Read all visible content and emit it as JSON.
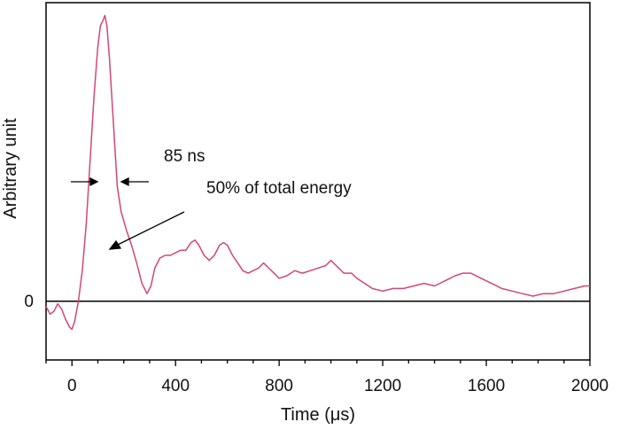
{
  "chart_data": {
    "type": "line",
    "xlabel": "Time (μs)",
    "ylabel": "Arbitrary unit",
    "xlim": [
      -100,
      2000
    ],
    "ylim": [
      -0.23,
      1.17
    ],
    "xticks": [
      0,
      400,
      800,
      1200,
      1600,
      2000
    ],
    "xtick_labels": [
      "0",
      "400",
      "800",
      "1200",
      "1600",
      "2000"
    ],
    "yticks": [
      0
    ],
    "ytick_labels": [
      "0"
    ],
    "baseline": 0,
    "grid": false,
    "series": [
      {
        "color": "#d4457a",
        "x": [
          -100,
          -85,
          -70,
          -55,
          -40,
          -25,
          -10,
          0,
          10,
          25,
          40,
          55,
          70,
          85,
          100,
          110,
          120,
          127,
          135,
          145,
          160,
          175,
          190,
          210,
          230,
          250,
          270,
          290,
          305,
          320,
          340,
          360,
          380,
          400,
          420,
          440,
          460,
          475,
          490,
          510,
          530,
          550,
          570,
          585,
          600,
          620,
          640,
          660,
          680,
          700,
          720,
          740,
          760,
          780,
          800,
          830,
          860,
          890,
          920,
          950,
          980,
          1000,
          1020,
          1050,
          1080,
          1100,
          1130,
          1160,
          1200,
          1240,
          1280,
          1320,
          1360,
          1400,
          1440,
          1480,
          1510,
          1540,
          1580,
          1620,
          1660,
          1700,
          1740,
          1780,
          1820,
          1860,
          1900,
          1940,
          1980,
          2000
        ],
        "y": [
          -0.02,
          -0.05,
          -0.04,
          -0.01,
          -0.03,
          -0.07,
          -0.1,
          -0.11,
          -0.08,
          0.0,
          0.12,
          0.3,
          0.55,
          0.8,
          1.0,
          1.08,
          1.1,
          1.12,
          1.08,
          0.95,
          0.7,
          0.45,
          0.35,
          0.28,
          0.22,
          0.15,
          0.07,
          0.03,
          0.06,
          0.13,
          0.17,
          0.18,
          0.18,
          0.19,
          0.2,
          0.2,
          0.23,
          0.24,
          0.22,
          0.18,
          0.16,
          0.18,
          0.22,
          0.23,
          0.22,
          0.18,
          0.15,
          0.12,
          0.11,
          0.12,
          0.13,
          0.15,
          0.13,
          0.11,
          0.09,
          0.1,
          0.12,
          0.11,
          0.12,
          0.13,
          0.14,
          0.16,
          0.14,
          0.11,
          0.11,
          0.09,
          0.07,
          0.05,
          0.04,
          0.05,
          0.05,
          0.06,
          0.07,
          0.06,
          0.08,
          0.1,
          0.11,
          0.11,
          0.09,
          0.07,
          0.05,
          0.04,
          0.03,
          0.02,
          0.03,
          0.03,
          0.04,
          0.05,
          0.06,
          0.06
        ]
      }
    ],
    "annotations": [
      {
        "text": "85 ns"
      },
      {
        "text": "50% of total energy"
      }
    ]
  }
}
